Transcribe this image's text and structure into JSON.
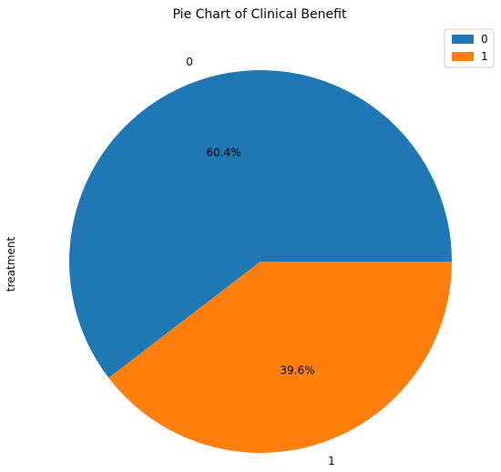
{
  "chart_data": {
    "type": "pie",
    "title": "Pie Chart of Clinical Benefit",
    "ylabel": "treatment",
    "categories": [
      "0",
      "1"
    ],
    "values": [
      60.4,
      39.6
    ],
    "value_labels": [
      "60.4%",
      "39.6%"
    ],
    "colors": [
      "#1f77b4",
      "#ff7f0e"
    ],
    "legend": {
      "placement": "top-right",
      "entries": [
        "0",
        "1"
      ]
    }
  }
}
